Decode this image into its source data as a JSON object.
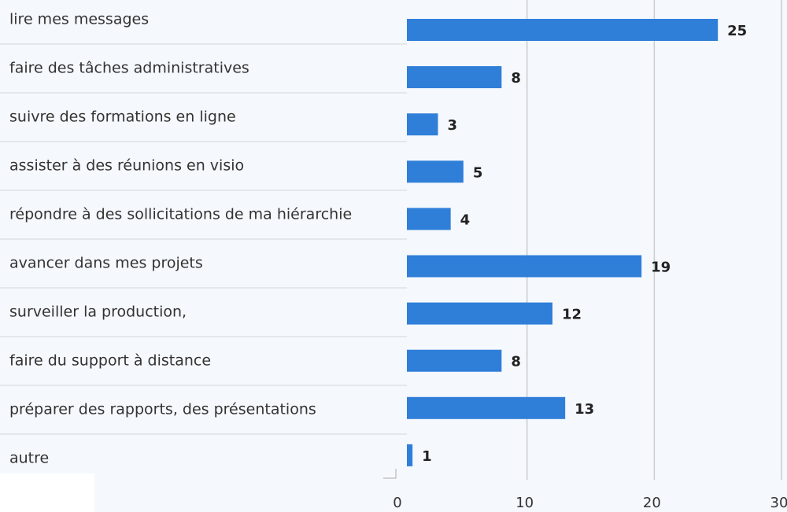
{
  "chart_data": {
    "type": "bar",
    "orientation": "horizontal",
    "categories": [
      "lire mes messages",
      "faire des tâches administratives",
      "suivre des formations en ligne",
      "assister à des réunions en visio",
      "répondre à des sollicitations de ma hiérarchie",
      "avancer dans mes projets",
      "surveiller la production,",
      "faire du support à distance",
      "préparer des rapports, des présentations",
      "autre"
    ],
    "values": [
      25,
      8,
      3,
      5,
      4,
      19,
      12,
      8,
      13,
      1
    ],
    "color": "#2f7fd9",
    "xlim": [
      0,
      30
    ],
    "xticks": [
      0,
      10,
      20,
      30
    ],
    "grid": true
  }
}
